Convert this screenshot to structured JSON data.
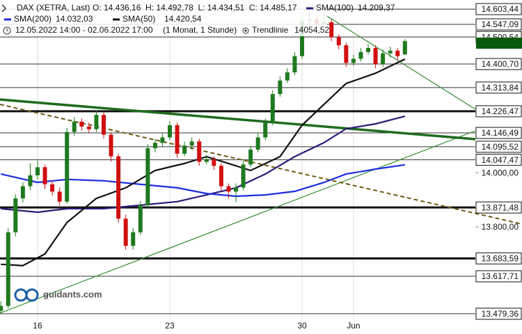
{
  "header": {
    "instrument": "DAX (XETRA, Last)",
    "ohlc": "O: 14.436,16  H: 14.492,78  L: 14.434,51  C: 14.485,17",
    "period": "12.05.2022 14:00 - 02.06.2022 17:00",
    "resolution": "(1 Monat, 1 Stunde)",
    "trendline_name": "Trendlinie",
    "trendline_value": "14054,52"
  },
  "watermark": "guidants.com",
  "chart_data": {
    "type": "candlestick",
    "up_color": "#1f7a1f",
    "down_color": "#d01010",
    "ylim": [
      13456,
      14637
    ],
    "candles": [
      [
        13490,
        13525,
        13479,
        13508
      ],
      [
        13508,
        13795,
        13500,
        13780
      ],
      [
        13780,
        13920,
        13765,
        13905
      ],
      [
        13905,
        13965,
        13890,
        13950
      ],
      [
        13950,
        14035,
        13935,
        13990
      ],
      [
        13990,
        14045,
        13975,
        14020
      ],
      [
        14020,
        14030,
        13940,
        13957
      ],
      [
        13957,
        13972,
        13915,
        13930
      ],
      [
        13930,
        13945,
        13878,
        13893
      ],
      [
        13893,
        14165,
        13885,
        14150
      ],
      [
        14150,
        14205,
        14135,
        14188
      ],
      [
        14188,
        14200,
        14155,
        14170
      ],
      [
        14170,
        14185,
        14145,
        14160
      ],
      [
        14160,
        14230,
        14150,
        14213
      ],
      [
        14213,
        14225,
        14125,
        14140
      ],
      [
        14140,
        14150,
        14040,
        14060
      ],
      [
        14060,
        14070,
        13815,
        13830
      ],
      [
        13830,
        13845,
        13715,
        13730
      ],
      [
        13730,
        13795,
        13715,
        13780
      ],
      [
        13780,
        13895,
        13770,
        13880
      ],
      [
        13880,
        14105,
        13870,
        14090
      ],
      [
        14090,
        14125,
        14075,
        14110
      ],
      [
        14110,
        14145,
        14095,
        14130
      ],
      [
        14130,
        14190,
        14120,
        14175
      ],
      [
        14175,
        14185,
        14055,
        14070
      ],
      [
        14070,
        14115,
        14060,
        14100
      ],
      [
        14100,
        14130,
        14085,
        14115
      ],
      [
        14115,
        14125,
        14025,
        14040
      ],
      [
        14040,
        14065,
        14030,
        14050
      ],
      [
        14050,
        14060,
        14010,
        14025
      ],
      [
        14025,
        14035,
        13935,
        13950
      ],
      [
        13950,
        13960,
        13905,
        13930
      ],
      [
        13930,
        13960,
        13890,
        13945
      ],
      [
        13945,
        14045,
        13935,
        14030
      ],
      [
        14030,
        14100,
        14020,
        14085
      ],
      [
        14085,
        14145,
        14075,
        14130
      ],
      [
        14130,
        14200,
        14120,
        14185
      ],
      [
        14185,
        14305,
        14175,
        14290
      ],
      [
        14290,
        14355,
        14280,
        14340
      ],
      [
        14340,
        14385,
        14330,
        14370
      ],
      [
        14370,
        14445,
        14360,
        14430
      ],
      [
        14430,
        14590,
        14420,
        14560
      ],
      [
        14560,
        14603,
        14540,
        14565
      ],
      [
        14565,
        14580,
        14535,
        14550
      ],
      [
        14550,
        14590,
        14540,
        14555
      ],
      [
        14555,
        14565,
        14485,
        14500
      ],
      [
        14500,
        14510,
        14455,
        14470
      ],
      [
        14470,
        14480,
        14390,
        14405
      ],
      [
        14405,
        14435,
        14395,
        14420
      ],
      [
        14420,
        14460,
        14410,
        14445
      ],
      [
        14445,
        14475,
        14435,
        14460
      ],
      [
        14460,
        14470,
        14385,
        14400
      ],
      [
        14400,
        14455,
        14390,
        14440
      ],
      [
        14440,
        14465,
        14425,
        14450
      ],
      [
        14450,
        14460,
        14415,
        14430
      ],
      [
        14436.16,
        14492.78,
        14434.51,
        14485.17
      ]
    ],
    "series": [
      {
        "name": "SMA(100)",
        "color": "#2b1a78",
        "last_label": "14.209,37",
        "x": [
          0,
          5,
          9,
          14,
          19,
          24,
          28,
          32,
          36,
          40,
          44,
          47,
          51,
          55
        ],
        "values": [
          13867,
          13854,
          13867,
          13867,
          13880,
          13893,
          13918,
          13944,
          13995,
          14059,
          14111,
          14162,
          14180,
          14208
        ]
      },
      {
        "name": "SMA(200)",
        "color": "#1a2ee0",
        "last_label": "14.032,03",
        "x": [
          0,
          5,
          9,
          14,
          19,
          24,
          28,
          32,
          36,
          40,
          44,
          47,
          51,
          55
        ],
        "values": [
          13995,
          13964,
          13975,
          13970,
          13957,
          13944,
          13923,
          13913,
          13918,
          13931,
          13964,
          13995,
          14013,
          14029
        ]
      },
      {
        "name": "SMA(50)",
        "color": "#111111",
        "last_label": "14.420,54",
        "x": [
          0,
          3,
          6,
          9,
          13,
          17,
          21,
          25,
          28,
          31,
          34,
          38,
          41,
          45,
          47,
          51,
          55
        ],
        "values": [
          13662,
          13657,
          13700,
          13816,
          13905,
          13944,
          14008,
          14034,
          14059,
          14034,
          14008,
          14059,
          14175,
          14278,
          14329,
          14367,
          14419
        ]
      }
    ],
    "xticks": [
      {
        "value": 5,
        "label": "16"
      },
      {
        "value": 23,
        "label": "23"
      },
      {
        "value": 41,
        "label": "30"
      },
      {
        "value": 48,
        "label": "Jun"
      }
    ],
    "yticks": [
      {
        "value": 14603.44,
        "label": "14.603,44",
        "style": "thin"
      },
      {
        "value": 14547.09,
        "label": "14.547,09",
        "style": "thin"
      },
      {
        "value": 14500.54,
        "label": "14.500,54",
        "style": "thin"
      },
      {
        "value": 14400.7,
        "label": "14.400,70",
        "style": "thin"
      },
      {
        "value": 14313.84,
        "label": "14.313,84",
        "style": "thin"
      },
      {
        "value": 14226.47,
        "label": "14.226,47",
        "style": "thick"
      },
      {
        "value": 14146.49,
        "label": "14.146,49",
        "style": "thin"
      },
      {
        "value": 14095.52,
        "label": "14.095,52",
        "style": "thin"
      },
      {
        "value": 14047.47,
        "label": "14.047,47",
        "style": "thin"
      },
      {
        "value": 14000,
        "label": "14.000,00",
        "style": "none"
      },
      {
        "value": 13871.48,
        "label": "13.871,48",
        "style": "thick"
      },
      {
        "value": 13800,
        "label": "13.800,00",
        "style": "none"
      },
      {
        "value": 13683.59,
        "label": "13.683,59",
        "style": "thick"
      },
      {
        "value": 13617.71,
        "label": "13.617,71",
        "style": "thin"
      },
      {
        "value": 13479.36,
        "label": "13.479,36",
        "style": "thin"
      }
    ]
  }
}
